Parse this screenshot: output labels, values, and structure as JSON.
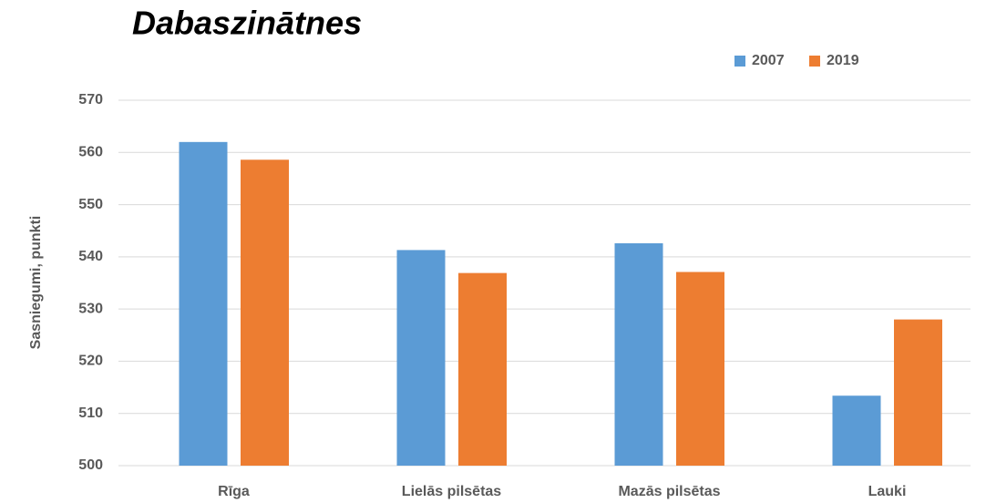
{
  "chart_data": {
    "type": "bar",
    "title": "Dabaszinātnes",
    "y_label": "Sasniegumi, punkti",
    "categories": [
      "Rīga",
      "Lielās pilsētas",
      "Mazās pilsētas",
      "Lauki"
    ],
    "series": [
      {
        "name": "2007",
        "color": "#5b9bd5",
        "values": [
          562,
          541.3,
          542.6,
          513.4
        ]
      },
      {
        "name": "2019",
        "color": "#ed7d31",
        "values": [
          558.6,
          536.9,
          537.1,
          528
        ]
      }
    ],
    "ylim": [
      500,
      570
    ],
    "yticks": [
      500,
      510,
      520,
      530,
      540,
      550,
      560,
      570
    ],
    "grid": true,
    "legend": "top-right"
  }
}
